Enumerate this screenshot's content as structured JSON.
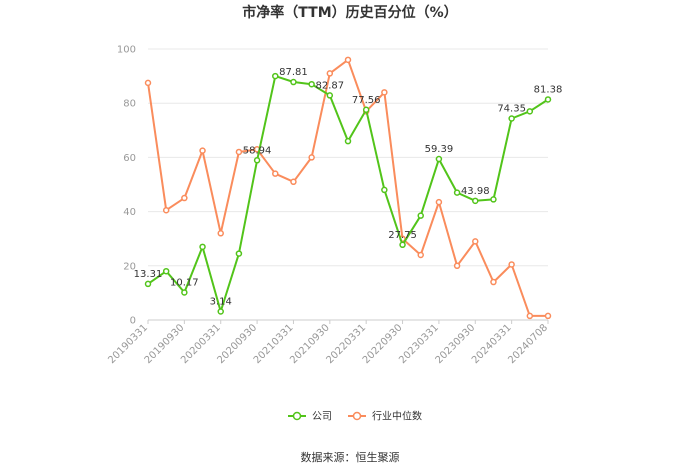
{
  "chart_data": {
    "type": "line",
    "title": "市净率（TTM）历史百分位（%）",
    "source": "数据来源：恒生聚源",
    "ylim": [
      0,
      100
    ],
    "yticks": [
      0,
      20,
      40,
      60,
      80,
      100
    ],
    "grid": "horizontal",
    "legend_position": "bottom",
    "x": [
      "20190331",
      "20190630",
      "20190930",
      "20191231",
      "20200331",
      "20200630",
      "20200930",
      "20201231",
      "20210331",
      "20210630",
      "20210930",
      "20211231",
      "20220331",
      "20220630",
      "20220930",
      "20221231",
      "20230331",
      "20230630",
      "20230930",
      "20231231",
      "20240331",
      "20240630",
      "20240708"
    ],
    "xticklabels": [
      "20190331",
      "20190930",
      "20200331",
      "20200930",
      "20210331",
      "20210930",
      "20220331",
      "20220930",
      "20230331",
      "20230930",
      "20240331",
      "20240708"
    ],
    "series": [
      {
        "name": "公司",
        "color": "#52c41a",
        "values": [
          13.31,
          18,
          10.17,
          27,
          3.14,
          24.5,
          58.94,
          90,
          87.81,
          87,
          82.87,
          66,
          77.56,
          48,
          27.75,
          38.5,
          59.39,
          47,
          43.98,
          44.5,
          74.35,
          77,
          81.38
        ],
        "labels": {
          "0": "13.31",
          "2": "10.17",
          "4": "3.14",
          "6": "58.94",
          "8": "87.81",
          "10": "82.87",
          "12": "77.56",
          "14": "27.75",
          "16": "59.39",
          "18": "43.98",
          "20": "74.35",
          "22": "81.38"
        }
      },
      {
        "name": "行业中位数",
        "color": "#fa8c5c",
        "values": [
          87.5,
          40.5,
          45,
          62.5,
          32,
          62,
          63,
          54,
          51,
          60,
          91,
          96,
          77,
          84,
          30,
          24,
          43.5,
          20,
          29,
          14,
          20.5,
          1.5,
          1.5
        ]
      }
    ]
  }
}
